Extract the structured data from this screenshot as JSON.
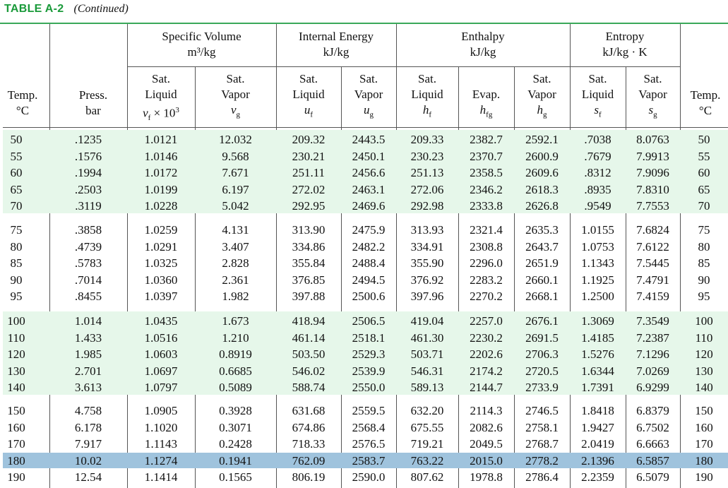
{
  "title": {
    "label": "TABLE A-2",
    "continued": "(Continued)"
  },
  "groups": {
    "specific_volume": {
      "name": "Specific Volume",
      "unit": "m³/kg"
    },
    "internal_energy": {
      "name": "Internal Energy",
      "unit": "kJ/kg"
    },
    "enthalpy": {
      "name": "Enthalpy",
      "unit": "kJ/kg"
    },
    "entropy": {
      "name": "Entropy",
      "unit": "kJ/kg · K"
    }
  },
  "columns": {
    "temp": {
      "name": "Temp.",
      "unit": "°C"
    },
    "press": {
      "name": "Press.",
      "unit": "bar"
    },
    "vf": {
      "l1": "Sat.",
      "l2": "Liquid",
      "sym": "v",
      "sub": "f",
      "suffix": " × 10",
      "sup": "3"
    },
    "vg": {
      "l1": "Sat.",
      "l2": "Vapor",
      "sym": "v",
      "sub": "g"
    },
    "uf": {
      "l1": "Sat.",
      "l2": "Liquid",
      "sym": "u",
      "sub": "f"
    },
    "ug": {
      "l1": "Sat.",
      "l2": "Vapor",
      "sym": "u",
      "sub": "g"
    },
    "hf": {
      "l1": "Sat.",
      "l2": "Liquid",
      "sym": "h",
      "sub": "f"
    },
    "hfg": {
      "l1": "",
      "l2": "Evap.",
      "sym": "h",
      "sub": "fg"
    },
    "hg": {
      "l1": "Sat.",
      "l2": "Vapor",
      "sym": "h",
      "sub": "g"
    },
    "sf": {
      "l1": "Sat.",
      "l2": "Liquid",
      "sym": "s",
      "sub": "f"
    },
    "sg": {
      "l1": "Sat.",
      "l2": "Vapor",
      "sym": "s",
      "sub": "g"
    },
    "temp_r": {
      "name": "Temp.",
      "unit": "°C"
    }
  },
  "rows": [
    [
      "50",
      ".1235",
      "1.0121",
      "12.032",
      "209.32",
      "2443.5",
      "209.33",
      "2382.7",
      "2592.1",
      ".7038",
      "8.0763",
      "50"
    ],
    [
      "55",
      ".1576",
      "1.0146",
      "9.568",
      "230.21",
      "2450.1",
      "230.23",
      "2370.7",
      "2600.9",
      ".7679",
      "7.9913",
      "55"
    ],
    [
      "60",
      ".1994",
      "1.0172",
      "7.671",
      "251.11",
      "2456.6",
      "251.13",
      "2358.5",
      "2609.6",
      ".8312",
      "7.9096",
      "60"
    ],
    [
      "65",
      ".2503",
      "1.0199",
      "6.197",
      "272.02",
      "2463.1",
      "272.06",
      "2346.2",
      "2618.3",
      ".8935",
      "7.8310",
      "65"
    ],
    [
      "70",
      ".3119",
      "1.0228",
      "5.042",
      "292.95",
      "2469.6",
      "292.98",
      "2333.8",
      "2626.8",
      ".9549",
      "7.7553",
      "70"
    ],
    [
      "75",
      ".3858",
      "1.0259",
      "4.131",
      "313.90",
      "2475.9",
      "313.93",
      "2321.4",
      "2635.3",
      "1.0155",
      "7.6824",
      "75"
    ],
    [
      "80",
      ".4739",
      "1.0291",
      "3.407",
      "334.86",
      "2482.2",
      "334.91",
      "2308.8",
      "2643.7",
      "1.0753",
      "7.6122",
      "80"
    ],
    [
      "85",
      ".5783",
      "1.0325",
      "2.828",
      "355.84",
      "2488.4",
      "355.90",
      "2296.0",
      "2651.9",
      "1.1343",
      "7.5445",
      "85"
    ],
    [
      "90",
      ".7014",
      "1.0360",
      "2.361",
      "376.85",
      "2494.5",
      "376.92",
      "2283.2",
      "2660.1",
      "1.1925",
      "7.4791",
      "90"
    ],
    [
      "95",
      ".8455",
      "1.0397",
      "1.982",
      "397.88",
      "2500.6",
      "397.96",
      "2270.2",
      "2668.1",
      "1.2500",
      "7.4159",
      "95"
    ],
    [
      "100",
      "1.014",
      "1.0435",
      "1.673",
      "418.94",
      "2506.5",
      "419.04",
      "2257.0",
      "2676.1",
      "1.3069",
      "7.3549",
      "100"
    ],
    [
      "110",
      "1.433",
      "1.0516",
      "1.210",
      "461.14",
      "2518.1",
      "461.30",
      "2230.2",
      "2691.5",
      "1.4185",
      "7.2387",
      "110"
    ],
    [
      "120",
      "1.985",
      "1.0603",
      "0.8919",
      "503.50",
      "2529.3",
      "503.71",
      "2202.6",
      "2706.3",
      "1.5276",
      "7.1296",
      "120"
    ],
    [
      "130",
      "2.701",
      "1.0697",
      "0.6685",
      "546.02",
      "2539.9",
      "546.31",
      "2174.2",
      "2720.5",
      "1.6344",
      "7.0269",
      "130"
    ],
    [
      "140",
      "3.613",
      "1.0797",
      "0.5089",
      "588.74",
      "2550.0",
      "589.13",
      "2144.7",
      "2733.9",
      "1.7391",
      "6.9299",
      "140"
    ],
    [
      "150",
      "4.758",
      "1.0905",
      "0.3928",
      "631.68",
      "2559.5",
      "632.20",
      "2114.3",
      "2746.5",
      "1.8418",
      "6.8379",
      "150"
    ],
    [
      "160",
      "6.178",
      "1.1020",
      "0.3071",
      "674.86",
      "2568.4",
      "675.55",
      "2082.6",
      "2758.1",
      "1.9427",
      "6.7502",
      "160"
    ],
    [
      "170",
      "7.917",
      "1.1143",
      "0.2428",
      "718.33",
      "2576.5",
      "719.21",
      "2049.5",
      "2768.7",
      "2.0419",
      "6.6663",
      "170"
    ],
    [
      "180",
      "10.02",
      "1.1274",
      "0.1941",
      "762.09",
      "2583.7",
      "763.22",
      "2015.0",
      "2778.2",
      "2.1396",
      "6.5857",
      "180"
    ],
    [
      "190",
      "12.54",
      "1.1414",
      "0.1565",
      "806.19",
      "2590.0",
      "807.62",
      "1978.8",
      "2786.4",
      "2.2359",
      "6.5079",
      "190"
    ]
  ],
  "highlighted_row_temp": "180",
  "colors": {
    "title_green": "#1a9a3a",
    "band_green": "#e6f7ea",
    "highlight_blue": "#9fc3dd"
  }
}
